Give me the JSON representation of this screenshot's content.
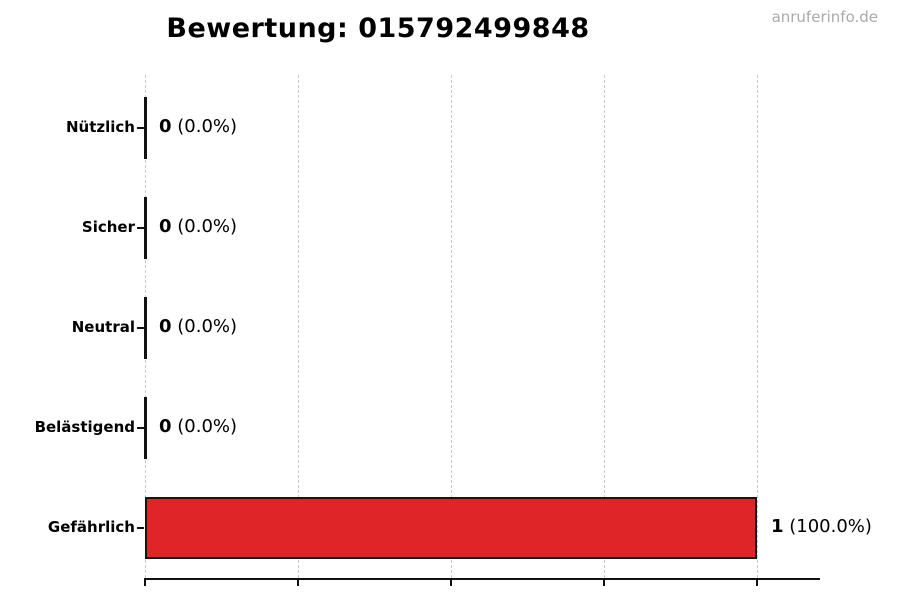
{
  "page": {
    "watermark": "anruferinfo.de"
  },
  "chart_data": {
    "type": "bar",
    "orientation": "horizontal",
    "title": "Bewertung: 015792499848",
    "categories": [
      "Nützlich",
      "Sicher",
      "Neutral",
      "Belästigend",
      "Gefährlich"
    ],
    "values": [
      0,
      0,
      0,
      0,
      1
    ],
    "percent_labels": [
      "0.0%",
      "0.0%",
      "0.0%",
      "0.0%",
      "100.0%"
    ],
    "value_labels": [
      "0 (0.0%)",
      "0 (0.0%)",
      "0 (0.0%)",
      "0 (0.0%)",
      "1 (100.0%)"
    ],
    "xlabel": "",
    "ylabel": "",
    "xlim": [
      0,
      1.1
    ],
    "x_ticks": [
      0,
      0.25,
      0.5,
      0.75,
      1.0
    ],
    "x_tick_labels_visible": false,
    "grid": "vertical-dashed",
    "legend": "none",
    "bar_color": "#e02528",
    "bar_edge_color": "#151515",
    "grid_color": "#c9c9c9",
    "watermark_color": "#aaaaaa"
  }
}
